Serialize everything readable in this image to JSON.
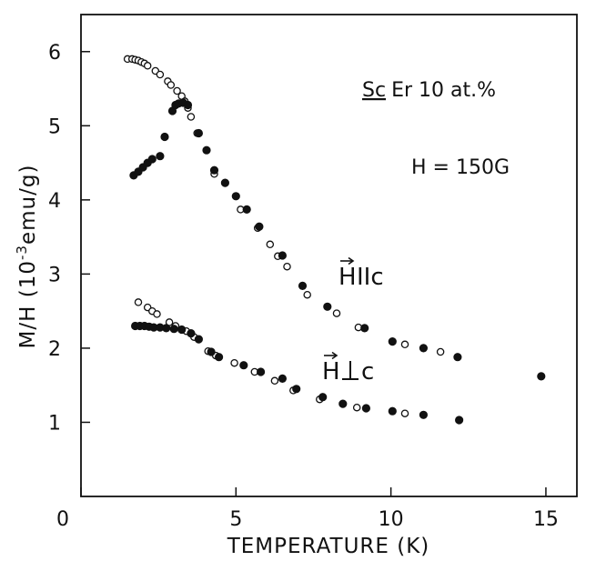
{
  "chart_data": {
    "type": "scatter",
    "xlabel": "TEMPERATURE (K)",
    "ylabel": "M/H (10",
    "ylabel_exponent": "-3",
    "ylabel_unit": "emu/g)",
    "xlim": [
      0,
      16
    ],
    "ylim": [
      0,
      6.5
    ],
    "x_ticks": [
      0,
      5,
      10,
      15
    ],
    "x_tick_labels": [
      "0",
      "5",
      "10",
      "15"
    ],
    "y_ticks": [
      1,
      2,
      3,
      4,
      5,
      6
    ],
    "y_tick_labels": [
      "1",
      "2",
      "3",
      "4",
      "5",
      "6"
    ],
    "grid": false,
    "annotations": {
      "sample_prefix": "Sc",
      "sample_rest": "Er 10 at.%",
      "field": "H = 150G",
      "label_parallel": "H",
      "label_parallel_suffix": "IIc",
      "label_perp": "H",
      "label_perp_suffix": "c"
    },
    "series": [
      {
        "marker": "open",
        "points": [
          [
            1.5,
            5.9
          ],
          [
            1.65,
            5.9
          ],
          [
            1.75,
            5.89
          ],
          [
            1.85,
            5.88
          ],
          [
            1.95,
            5.86
          ],
          [
            2.05,
            5.84
          ],
          [
            2.15,
            5.81
          ],
          [
            2.4,
            5.74
          ],
          [
            2.55,
            5.69
          ],
          [
            2.8,
            5.6
          ],
          [
            2.9,
            5.55
          ],
          [
            3.1,
            5.47
          ],
          [
            3.25,
            5.4
          ],
          [
            3.35,
            5.33
          ],
          [
            3.45,
            5.24
          ],
          [
            3.55,
            5.12
          ],
          [
            3.75,
            4.9
          ],
          [
            4.3,
            4.35
          ],
          [
            4.65,
            4.23
          ],
          [
            5.15,
            3.87
          ],
          [
            5.7,
            3.62
          ],
          [
            6.1,
            3.4
          ],
          [
            6.35,
            3.24
          ],
          [
            6.65,
            3.1
          ],
          [
            7.3,
            2.72
          ],
          [
            8.25,
            2.47
          ],
          [
            8.95,
            2.28
          ],
          [
            1.85,
            2.62
          ],
          [
            2.15,
            2.55
          ],
          [
            2.3,
            2.5
          ],
          [
            2.45,
            2.46
          ],
          [
            2.85,
            2.35
          ],
          [
            3.05,
            2.3
          ],
          [
            3.4,
            2.23
          ],
          [
            3.65,
            2.15
          ],
          [
            4.1,
            1.96
          ],
          [
            4.35,
            1.9
          ],
          [
            4.95,
            1.8
          ],
          [
            5.6,
            1.68
          ],
          [
            6.25,
            1.56
          ],
          [
            6.85,
            1.43
          ],
          [
            7.7,
            1.31
          ],
          [
            8.9,
            1.2
          ],
          [
            10.45,
            1.12
          ],
          [
            10.45,
            2.05
          ],
          [
            11.6,
            1.95
          ]
        ]
      },
      {
        "marker": "filled",
        "points": [
          [
            1.7,
            4.33
          ],
          [
            1.85,
            4.38
          ],
          [
            2.0,
            4.44
          ],
          [
            2.15,
            4.5
          ],
          [
            2.3,
            4.55
          ],
          [
            2.55,
            4.59
          ],
          [
            2.7,
            4.85
          ],
          [
            2.95,
            5.2
          ],
          [
            3.05,
            5.28
          ],
          [
            3.15,
            5.3
          ],
          [
            3.3,
            5.31
          ],
          [
            3.45,
            5.28
          ],
          [
            3.8,
            4.9
          ],
          [
            4.05,
            4.67
          ],
          [
            4.3,
            4.4
          ],
          [
            4.65,
            4.23
          ],
          [
            5.0,
            4.05
          ],
          [
            5.35,
            3.87
          ],
          [
            5.75,
            3.64
          ],
          [
            6.5,
            3.25
          ],
          [
            7.15,
            2.84
          ],
          [
            7.95,
            2.56
          ],
          [
            9.15,
            2.27
          ],
          [
            10.05,
            2.09
          ],
          [
            11.05,
            2.0
          ],
          [
            12.15,
            1.88
          ],
          [
            1.75,
            2.3
          ],
          [
            1.9,
            2.3
          ],
          [
            2.05,
            2.3
          ],
          [
            2.2,
            2.29
          ],
          [
            2.35,
            2.28
          ],
          [
            2.55,
            2.28
          ],
          [
            2.75,
            2.27
          ],
          [
            3.0,
            2.26
          ],
          [
            3.25,
            2.25
          ],
          [
            3.55,
            2.2
          ],
          [
            3.8,
            2.12
          ],
          [
            4.2,
            1.95
          ],
          [
            4.45,
            1.88
          ],
          [
            5.25,
            1.77
          ],
          [
            5.8,
            1.68
          ],
          [
            6.5,
            1.59
          ],
          [
            6.95,
            1.45
          ],
          [
            7.8,
            1.34
          ],
          [
            8.45,
            1.25
          ],
          [
            9.2,
            1.19
          ],
          [
            10.05,
            1.15
          ],
          [
            11.05,
            1.1
          ],
          [
            12.2,
            1.03
          ],
          [
            14.85,
            1.62
          ]
        ]
      }
    ]
  }
}
